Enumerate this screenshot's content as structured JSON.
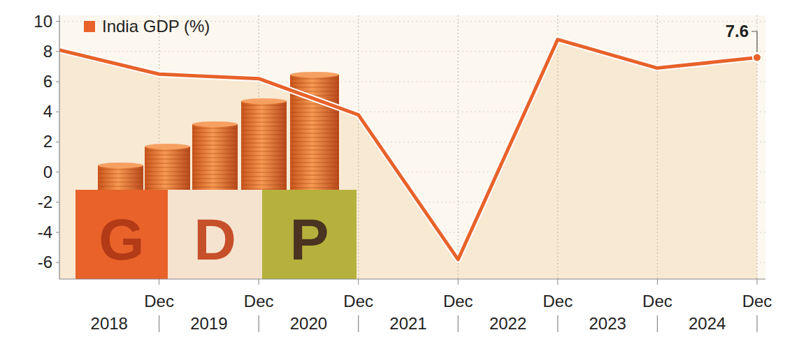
{
  "chart_data": {
    "type": "line",
    "categories": [
      null,
      "Dec",
      "Dec",
      "Dec",
      "Dec",
      "Dec",
      "Dec",
      "Dec"
    ],
    "x_groups": [
      "2018",
      "2019",
      "2020",
      "2021",
      "2022",
      "2023",
      "2024"
    ],
    "series": [
      {
        "name": "India GDP (%)",
        "color": "#e8622a",
        "values": [
          8.1,
          6.5,
          6.2,
          3.8,
          -5.8,
          8.8,
          6.9,
          7.6
        ],
        "value_labels": [
          null,
          null,
          null,
          null,
          null,
          null,
          null,
          "7.6"
        ]
      }
    ],
    "ylim": [
      -7.1,
      10.4
    ],
    "yticks": [
      -6,
      -4,
      -2,
      0,
      2,
      4,
      6,
      8,
      10
    ],
    "grid": true,
    "legend": "top-left",
    "illustration_letters": [
      "G",
      "D",
      "P"
    ]
  }
}
